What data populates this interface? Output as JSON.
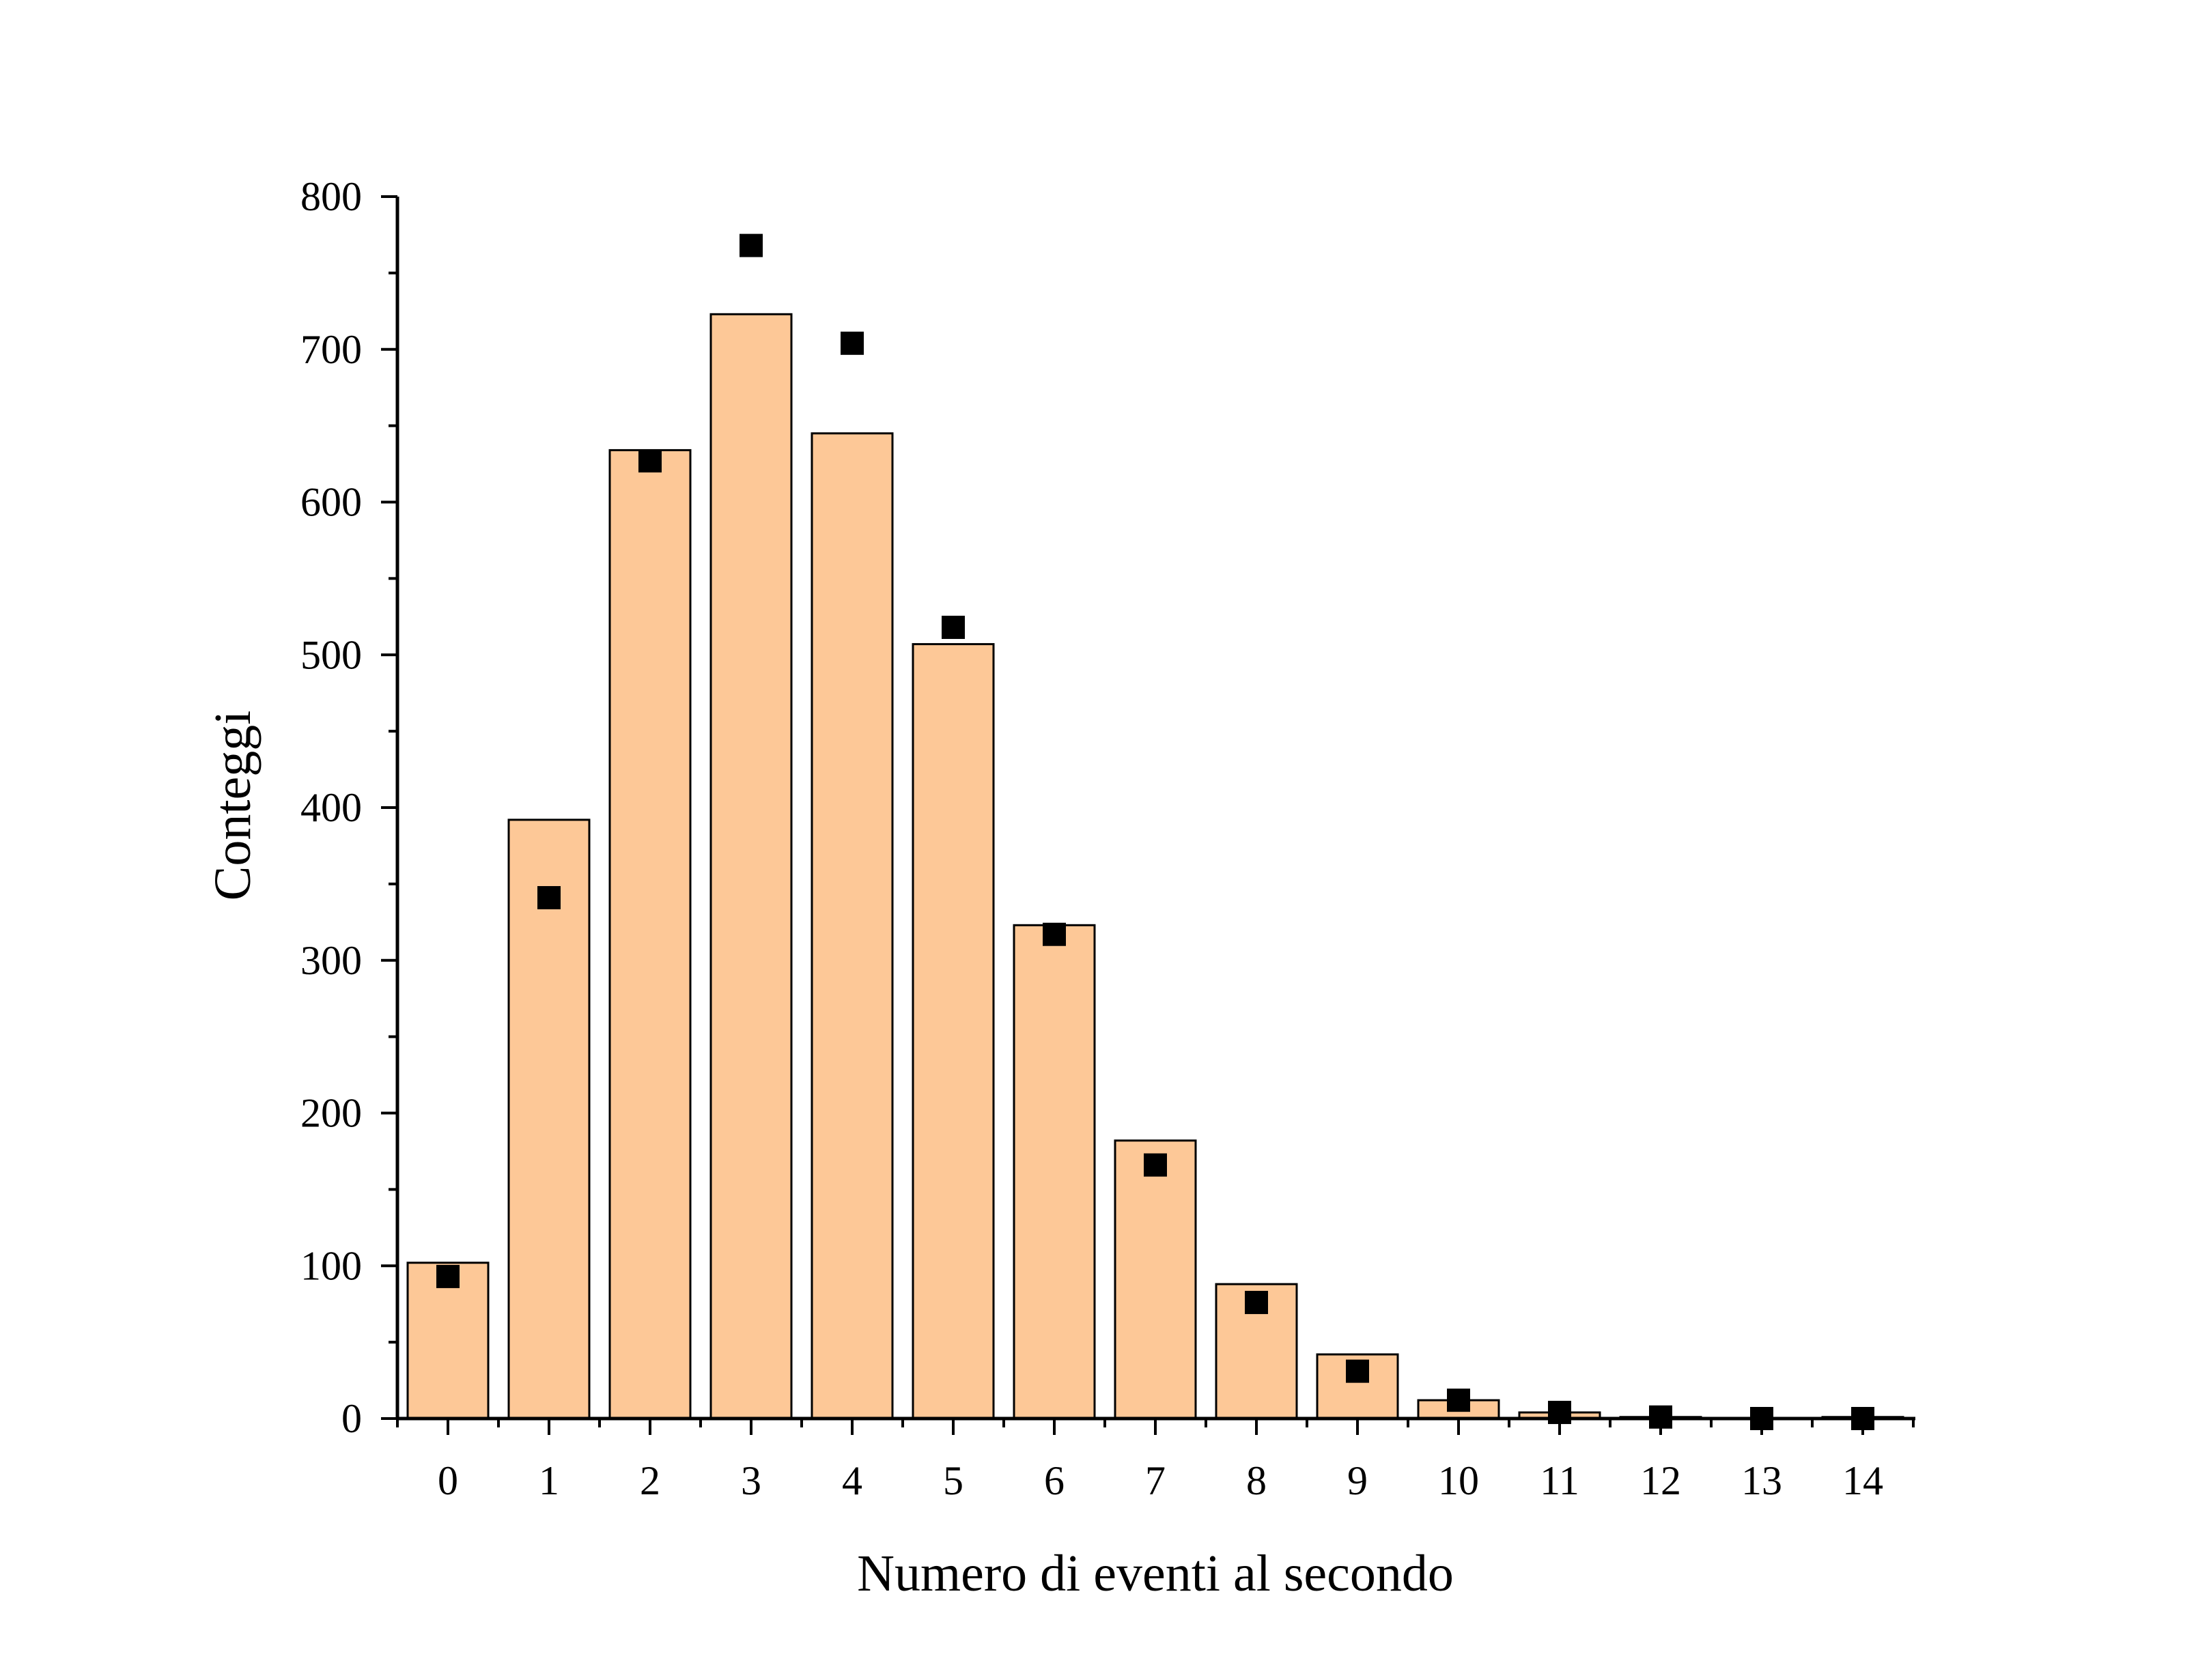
{
  "chart_data": {
    "type": "bar",
    "xlabel": "Numero di eventi al secondo",
    "ylabel": "Conteggi",
    "categories": [
      "0",
      "1",
      "2",
      "3",
      "4",
      "5",
      "6",
      "7",
      "8",
      "9",
      "10",
      "11",
      "12",
      "13",
      "14"
    ],
    "series": [
      {
        "kind": "bar",
        "values": [
          102,
          392,
          634,
          723,
          645,
          507,
          323,
          182,
          88,
          42,
          12,
          4,
          1,
          0,
          1
        ],
        "color": "#FDC897"
      },
      {
        "kind": "scatter",
        "values": [
          93,
          341,
          627,
          768,
          704,
          518,
          317,
          166,
          76,
          31,
          12,
          4,
          1,
          0,
          0
        ],
        "color": "#000000"
      }
    ],
    "ylim": [
      0,
      800
    ],
    "yticks": [
      0,
      100,
      200,
      300,
      400,
      500,
      600,
      700,
      800
    ],
    "grid": false,
    "legend": "none"
  }
}
